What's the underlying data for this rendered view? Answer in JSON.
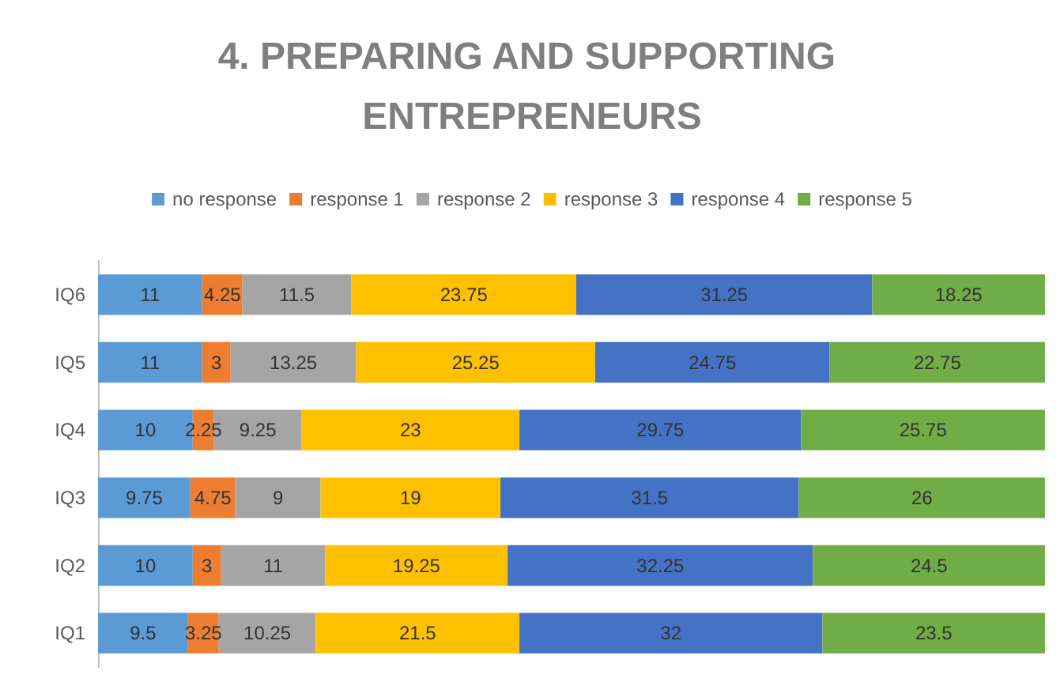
{
  "chart_data": {
    "type": "bar",
    "orientation": "horizontal",
    "stacked": true,
    "data_labels": true,
    "legend": "top",
    "grid": false,
    "tick_labels": "y",
    "title": "4. PREPARING AND SUPPORTING ENTREPRENEURS",
    "categories": [
      "IQ6",
      "IQ5",
      "IQ4",
      "IQ3",
      "IQ2",
      "IQ1"
    ],
    "series": [
      {
        "name": "no response",
        "color": "#5b9bd5",
        "values": [
          11,
          11,
          10,
          9.75,
          10,
          9.5
        ]
      },
      {
        "name": "response 1",
        "color": "#ed7d31",
        "values": [
          4.25,
          3,
          2.25,
          4.75,
          3,
          3.25
        ]
      },
      {
        "name": "response 2",
        "color": "#a5a5a5",
        "values": [
          11.5,
          13.25,
          9.25,
          9,
          11,
          10.25
        ]
      },
      {
        "name": "response 3",
        "color": "#ffc000",
        "values": [
          23.75,
          25.25,
          23,
          19,
          19.25,
          21.5
        ]
      },
      {
        "name": "response 4",
        "color": "#4472c4",
        "values": [
          31.25,
          24.75,
          29.75,
          31.5,
          32.25,
          32
        ]
      },
      {
        "name": "response 5",
        "color": "#70ad47",
        "values": [
          18.25,
          22.75,
          25.75,
          26,
          24.5,
          23.5
        ]
      }
    ]
  }
}
